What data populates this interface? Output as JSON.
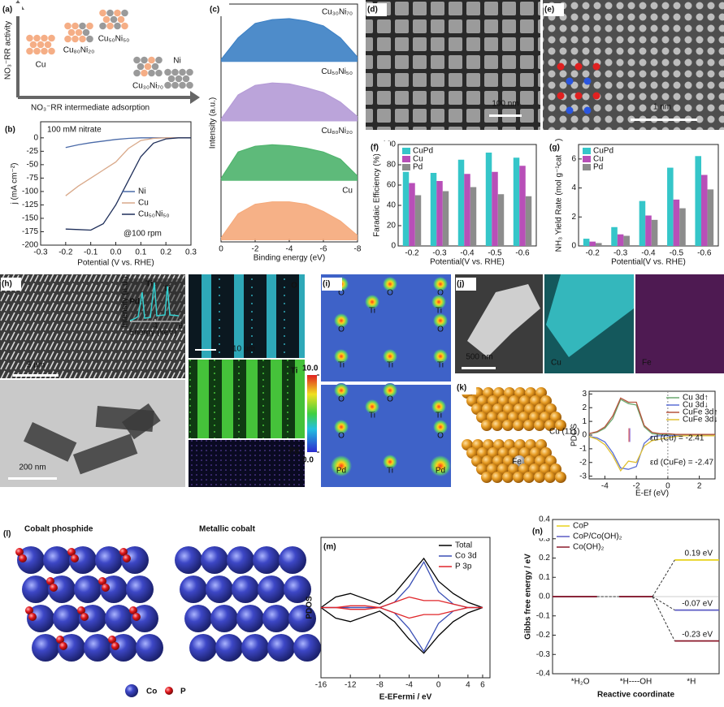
{
  "a": {
    "label": "(a)",
    "y_axis": "NO₃⁻RR activity",
    "x_axis": "NO₃⁻RR intermediate adsorption",
    "items": [
      "Cu",
      "Cu₈₀Ni₂₀",
      "Cu₅₀Ni₅₀",
      "Cu₃₀Ni₇₀",
      "Ni"
    ]
  },
  "b": {
    "type": "line",
    "label": "(b)",
    "annotations": [
      "100 mM nitrate",
      "@100 rpm"
    ],
    "xlabel": "Potential (V vs. RHE)",
    "ylabel": "j (mA cm⁻²)",
    "xlim": [
      -0.3,
      0.3
    ],
    "xticks": [
      -0.3,
      -0.2,
      -0.1,
      {
        "value": 0,
        "label": "0.0"
      },
      0.1,
      0.2,
      0.3
    ],
    "ylim": [
      -200,
      30
    ],
    "yticks": [
      0,
      -25,
      -50,
      -75,
      -100,
      -125,
      -150,
      -175,
      -200
    ],
    "x": [
      -0.2,
      -0.15,
      -0.1,
      -0.05,
      0,
      0.05,
      0.1,
      0.15,
      0.2,
      0.25,
      0.3
    ],
    "series": [
      {
        "name": "Ni",
        "color": "#4a6aa8",
        "values": [
          -18,
          -13,
          -9,
          -6,
          -3,
          -1,
          0,
          0,
          0,
          0,
          0
        ]
      },
      {
        "name": "Cu",
        "color": "#d9a98a",
        "values": [
          -108,
          -90,
          -75,
          -60,
          -45,
          -20,
          -5,
          -1,
          0,
          0,
          0
        ]
      },
      {
        "name": "Cu₅₀Ni₅₀",
        "color": "#1f2f5a",
        "values": [
          -170,
          -171,
          -172,
          -160,
          -125,
          -80,
          -35,
          -10,
          -2,
          0,
          0
        ]
      }
    ]
  },
  "c": {
    "type": "area",
    "label": "(c)",
    "xlabel": "Binding energy (eV)",
    "ylabel": "Intensity (a.u.)",
    "xlim": [
      0,
      -8
    ],
    "xticks": [
      0,
      -2,
      -4,
      -6,
      -8
    ],
    "x": [
      0,
      -1,
      -2,
      -3,
      -4,
      -5,
      -6,
      -7,
      -8
    ],
    "series": [
      {
        "name": "Cu₃₀Ni₇₀",
        "color": "#3b7fc4",
        "values": [
          0.05,
          0.5,
          0.8,
          0.88,
          0.9,
          0.85,
          0.75,
          0.5,
          0.1
        ]
      },
      {
        "name": "Cu₅₀Ni₅₀",
        "color": "#b49ad6",
        "values": [
          0.05,
          0.55,
          0.75,
          0.8,
          0.78,
          0.7,
          0.6,
          0.4,
          0.1
        ]
      },
      {
        "name": "Cu₈₀Ni₂₀",
        "color": "#4db36b",
        "values": [
          0.05,
          0.6,
          0.72,
          0.75,
          0.73,
          0.68,
          0.6,
          0.45,
          0.1
        ]
      },
      {
        "name": "Cu",
        "color": "#f5a97a",
        "values": [
          0.05,
          0.55,
          0.75,
          0.8,
          0.8,
          0.75,
          0.6,
          0.4,
          0.1
        ]
      }
    ]
  },
  "d": {
    "label": "(d)",
    "scale": "100 nm"
  },
  "e": {
    "label": "(e)",
    "scale": "1 nm"
  },
  "f": {
    "type": "bar",
    "label": "(f)",
    "xlabel": "Potential(V vs. RHE)",
    "ylabel": "Faradaic Efficiency (%)",
    "categories": [
      "-0.2",
      "-0.3",
      "-0.4",
      "-0.5",
      "-0.6"
    ],
    "ylim": [
      0,
      100
    ],
    "yticks": [
      0,
      20,
      40,
      60,
      80,
      100
    ],
    "series": [
      {
        "name": "CuPd",
        "color": "#35c6c9",
        "values": [
          73,
          72,
          85,
          92,
          87
        ]
      },
      {
        "name": "Cu",
        "color": "#b84fb8",
        "values": [
          62,
          64,
          71,
          73,
          79
        ]
      },
      {
        "name": "Pd",
        "color": "#8c8c8c",
        "values": [
          50,
          54,
          58,
          51,
          49
        ]
      }
    ]
  },
  "g": {
    "type": "bar",
    "label": "(g)",
    "xlabel": "Potential(V vs. RHE)",
    "ylabel": "NH₃ Yield Rate (mol g⁻¹cat h⁻¹)",
    "categories": [
      "-0.2",
      "-0.3",
      "-0.4",
      "-0.5",
      "-0.6"
    ],
    "ylim": [
      0,
      7
    ],
    "yticks": [
      0,
      2,
      4,
      6
    ],
    "series": [
      {
        "name": "CuPd",
        "color": "#35c6c9",
        "values": [
          0.5,
          1.3,
          3.1,
          5.4,
          6.2
        ]
      },
      {
        "name": "Cu",
        "color": "#b84fb8",
        "values": [
          0.3,
          0.8,
          2.1,
          3.2,
          4.9
        ]
      },
      {
        "name": "Pd",
        "color": "#8c8c8c",
        "values": [
          0.2,
          0.7,
          1.8,
          2.6,
          3.9
        ]
      }
    ]
  },
  "h": {
    "label": "(h)",
    "scale_bars": [
      "5 µm",
      "200 nm",
      "10 µm"
    ],
    "maps": [
      "O",
      "Ti",
      "Pd"
    ],
    "inset": {
      "ylabel": "Intensity (a.u.)",
      "xlabel": "Energy (keV)",
      "xticks": [
        4,
        6
      ],
      "peaks": [
        "Pd",
        "Ti",
        "Ti"
      ]
    },
    "colorbar_ticks": [
      {
        "value": 10,
        "label": "10.0"
      },
      {
        "value": 0,
        "label": "0.0"
      }
    ]
  },
  "i": {
    "label": "(i)",
    "top": [
      "O",
      "O",
      "O",
      "Ti",
      "Ti",
      "O",
      "O",
      "Ti",
      "Ti",
      "Ti"
    ],
    "bottom": [
      "O",
      "O",
      "Ti",
      "Ti",
      "O",
      "O",
      "Pd",
      "Ti",
      "Pd"
    ]
  },
  "j": {
    "label": "(j)",
    "scale": "500 nm",
    "maps": [
      "Cu",
      "Fe"
    ]
  },
  "k": {
    "type": "line",
    "label": "(k)",
    "slab_labels": [
      "Cu (111)",
      "Fe"
    ],
    "xlabel": "E-Ef (eV)",
    "ylabel": "PDOS",
    "xlim": [
      -5,
      3
    ],
    "xticks": [
      -4,
      -2,
      0,
      2
    ],
    "ylim": [
      -3.2,
      3.2
    ],
    "yticks": [
      -3,
      -2,
      -1,
      0,
      1,
      2,
      3
    ],
    "x": [
      -5,
      -4.5,
      -4,
      -3.5,
      -3,
      -2.5,
      -2,
      -1.5,
      -1,
      -0.5,
      0,
      0.5,
      1,
      1.5,
      2,
      2.5,
      3
    ],
    "series": [
      {
        "name": "Cu 3d↑",
        "color": "#6aa86f",
        "values": [
          0.1,
          0.2,
          0.5,
          1.2,
          2.6,
          2.3,
          2.2,
          0.6,
          0.1,
          0.05,
          0.05,
          0.05,
          0.05,
          0.05,
          0.05,
          0.05,
          0.05
        ]
      },
      {
        "name": "Cu 3d↓",
        "color": "#5b6fd6",
        "values": [
          -0.1,
          -0.2,
          -0.5,
          -1.3,
          -2.4,
          -2.5,
          -2.3,
          -0.6,
          -0.1,
          -0.05,
          -0.05,
          -0.05,
          -0.05,
          -0.05,
          -0.05,
          -0.05,
          -0.05
        ]
      },
      {
        "name": "CuFe 3d↑",
        "color": "#b5533c",
        "values": [
          0.1,
          0.25,
          0.6,
          1.4,
          2.7,
          2.4,
          2.4,
          0.7,
          0.2,
          0.1,
          0.1,
          0.05,
          0.05,
          0.05,
          0.05,
          0.05,
          0.05
        ]
      },
      {
        "name": "CuFe 3d↓",
        "color": "#e0c030",
        "values": [
          -0.1,
          -0.3,
          -0.7,
          -1.5,
          -2.6,
          -1.9,
          -2.0,
          -0.8,
          -0.4,
          -0.3,
          -0.2,
          -0.1,
          -0.05,
          -0.05,
          -0.05,
          -0.05,
          -0.05
        ]
      }
    ],
    "d_band_centers": {
      "values": [
        -2.41,
        -2.47
      ],
      "labels": [
        "εd (Cu) = -2.41",
        "εd (CuFe) = -2.47"
      ]
    }
  },
  "l": {
    "label": "(l)",
    "titles": [
      "Cobalt phosphide",
      "Metallic cobalt"
    ],
    "legend": [
      "Co",
      "P"
    ]
  },
  "m": {
    "type": "line",
    "label": "(m)",
    "xlabel": "E-EFermi / eV",
    "ylabel": "PDOS",
    "xlim": [
      -16,
      7
    ],
    "xticks": [
      -16,
      -12,
      -8,
      -4,
      0,
      4,
      6
    ],
    "ylim": [
      -4,
      4
    ],
    "x": [
      -16,
      -14,
      -12,
      -10,
      -8,
      -6,
      -4,
      -2,
      0,
      2,
      4,
      6
    ],
    "series": [
      {
        "name": "Total",
        "color": "#000000",
        "values": [
          0,
          0.6,
          0.8,
          0.5,
          0.2,
          0.8,
          1.8,
          2.8,
          1.5,
          0.8,
          0.3,
          0
        ],
        "values_down": [
          0,
          -0.6,
          -0.8,
          -0.5,
          -0.2,
          -0.8,
          -1.8,
          -2.6,
          -1.6,
          -0.8,
          -0.3,
          0
        ]
      },
      {
        "name": "Co 3d",
        "color": "#3a4fb5",
        "values": [
          0,
          0,
          0,
          0,
          0,
          0.3,
          1.2,
          2.6,
          0.9,
          0.2,
          0,
          0
        ],
        "values_down": [
          0,
          0,
          0,
          0,
          0,
          -0.3,
          -1.2,
          -2.5,
          -0.9,
          -0.2,
          0,
          0
        ]
      },
      {
        "name": "P 3p",
        "color": "#e0262a",
        "values": [
          0,
          0,
          0.1,
          0.1,
          0,
          0.3,
          0.6,
          0.4,
          0.4,
          0.2,
          0,
          0
        ],
        "values_down": [
          0,
          0,
          -0.1,
          -0.1,
          0,
          -0.3,
          -0.6,
          -0.4,
          -0.4,
          -0.2,
          0,
          0
        ]
      }
    ]
  },
  "n": {
    "type": "levels",
    "label": "(n)",
    "xlabel": "Reactive coordinate",
    "ylabel": "Gibbs free energy / eV",
    "categories": [
      "*H₂O",
      "*H----OH",
      "*H"
    ],
    "ylim": [
      -0.4,
      0.4
    ],
    "yticks": [
      -0.4,
      -0.3,
      -0.2,
      -0.1,
      {
        "value": 0,
        "label": "0.0"
      },
      0.1,
      0.2,
      0.3,
      0.4
    ],
    "series": [
      {
        "name": "CoP",
        "color": "#e8d21a",
        "values": [
          0,
          0,
          0.19
        ],
        "end_label": "0.19 eV"
      },
      {
        "name": "CoP/Co(OH)₂",
        "color": "#5b5bc4",
        "values": [
          0,
          0,
          -0.07
        ],
        "end_label": "-0.07 eV"
      },
      {
        "name": "Co(OH)₂",
        "color": "#8b1a2b",
        "values": [
          0,
          0,
          -0.23
        ],
        "end_label": "-0.23 eV"
      }
    ]
  }
}
